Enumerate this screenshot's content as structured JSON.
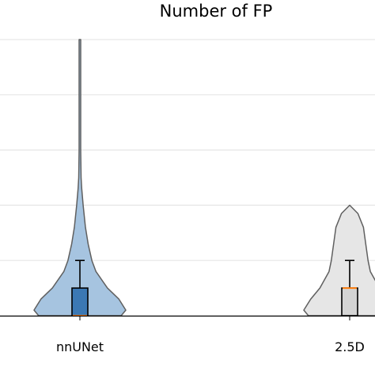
{
  "chart_data": {
    "type": "violin",
    "title": "Number of FP",
    "xlabel": "",
    "ylabel": "",
    "categories": [
      "nnUNet",
      "2.5D"
    ],
    "ylim": [
      0,
      5
    ],
    "grid": "horizontal",
    "y_gridlines": [
      0,
      1,
      2,
      3,
      4,
      5
    ],
    "series": [
      {
        "category": "nnUNet",
        "violin_color": "#a6c4e0",
        "box_color": "#3b78b4",
        "min": 0,
        "q1": 0,
        "median": 0,
        "q3": 0.5,
        "whisker_high": 1,
        "max": 5,
        "density_profile": [
          [
            0.0,
            0.9
          ],
          [
            0.1,
            1.0
          ],
          [
            0.3,
            0.85
          ],
          [
            0.5,
            0.6
          ],
          [
            0.8,
            0.35
          ],
          [
            1.0,
            0.26
          ],
          [
            1.3,
            0.18
          ],
          [
            1.6,
            0.12
          ],
          [
            2.0,
            0.07
          ],
          [
            2.3,
            0.04
          ],
          [
            2.5,
            0.025
          ],
          [
            3.0,
            0.018
          ],
          [
            3.5,
            0.018
          ],
          [
            4.0,
            0.018
          ],
          [
            4.5,
            0.018
          ],
          [
            5.0,
            0.018
          ]
        ]
      },
      {
        "category": "2.5D",
        "violin_color": "#e6e6e6",
        "box_color": "#d4d4d4",
        "min": 0,
        "q1": 0,
        "median": 0.5,
        "q3": 0.5,
        "whisker_high": 1,
        "max": 2,
        "density_profile": [
          [
            0.0,
            0.9
          ],
          [
            0.1,
            1.0
          ],
          [
            0.3,
            0.85
          ],
          [
            0.5,
            0.65
          ],
          [
            0.8,
            0.45
          ],
          [
            1.0,
            0.4
          ],
          [
            1.3,
            0.35
          ],
          [
            1.6,
            0.3
          ],
          [
            1.85,
            0.18
          ],
          [
            2.0,
            0.0
          ]
        ]
      }
    ]
  }
}
